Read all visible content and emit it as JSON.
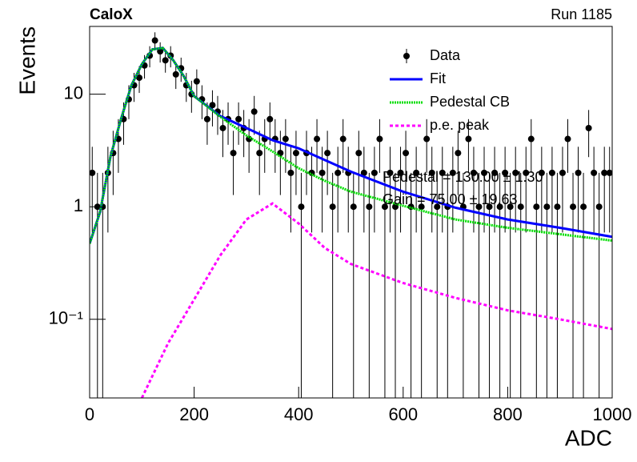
{
  "chart_data": {
    "type": "histogram-fit",
    "title": "CaloX",
    "subtitle": "Run 1185",
    "x_label": "ADC",
    "y_label": "Events",
    "log_y": true,
    "legend": "top-right",
    "xlim": [
      0,
      1000
    ],
    "xticks": [
      0,
      200,
      400,
      600,
      800,
      1000
    ],
    "ylim": [
      0.02,
      40
    ],
    "yticks": [
      {
        "value": 0.1,
        "label": "10⁻¹"
      },
      1,
      10
    ],
    "annotations": [
      "Pedestal = 130.00 ± 1.30",
      "Gain = 75.00 ± 19.63"
    ],
    "series": [
      {
        "name": "Data",
        "style": "points",
        "color": "#000000",
        "x": [
          5,
          15,
          25,
          35,
          45,
          55,
          65,
          75,
          85,
          95,
          105,
          115,
          125,
          135,
          145,
          155,
          165,
          175,
          185,
          195,
          205,
          215,
          225,
          235,
          245,
          255,
          265,
          275,
          285,
          295,
          305,
          315,
          325,
          335,
          345,
          355,
          365,
          375,
          385,
          395,
          405,
          415,
          425,
          435,
          445,
          455,
          465,
          475,
          485,
          495,
          505,
          515,
          525,
          535,
          545,
          555,
          565,
          575,
          585,
          595,
          605,
          615,
          625,
          635,
          645,
          655,
          665,
          675,
          685,
          695,
          705,
          715,
          725,
          735,
          745,
          755,
          765,
          775,
          785,
          795,
          805,
          815,
          825,
          835,
          845,
          855,
          865,
          875,
          885,
          895,
          905,
          915,
          925,
          935,
          945,
          955,
          965,
          975,
          985,
          995
        ],
        "values": [
          2,
          1,
          1,
          2,
          3,
          4,
          6,
          9,
          12,
          14,
          18,
          22,
          30,
          24,
          20,
          22,
          15,
          17,
          12,
          10,
          13,
          9,
          6,
          8,
          7,
          5,
          6,
          3,
          6,
          5,
          4,
          7,
          3,
          4,
          6,
          4,
          3,
          4,
          2,
          3,
          1,
          3,
          2,
          4,
          2,
          3,
          1,
          2,
          4,
          2,
          1,
          3,
          2,
          1,
          2,
          4,
          1,
          2,
          1,
          2,
          3,
          1,
          2,
          1,
          4,
          2,
          1,
          2,
          1,
          2,
          3,
          1,
          4,
          2,
          1,
          2,
          1,
          2,
          1,
          2,
          1,
          2,
          1,
          2,
          4,
          1,
          2,
          1,
          2,
          1,
          2,
          4,
          1,
          2,
          1,
          5,
          2,
          1,
          2,
          2
        ],
        "errors": [
          1.41,
          1,
          1,
          1.41,
          1.73,
          2,
          2.45,
          3,
          3.46,
          3.74,
          4.24,
          4.69,
          5.48,
          4.9,
          4.47,
          4.69,
          3.87,
          4.12,
          3.46,
          3.16,
          3.61,
          3,
          2.45,
          2.83,
          2.65,
          2.24,
          2.45,
          1.73,
          2.45,
          2.24,
          2,
          2.65,
          1.73,
          2,
          2.45,
          2,
          1.73,
          2,
          1.41,
          1.73,
          1,
          1.73,
          1.41,
          2,
          1.41,
          1.73,
          1,
          1.41,
          2,
          1.41,
          1,
          1.73,
          1.41,
          1,
          1.41,
          2,
          1,
          1.41,
          1,
          1.41,
          1.73,
          1,
          1.41,
          1,
          2,
          1.41,
          1,
          1.41,
          1,
          1.41,
          1.73,
          1,
          2,
          1.41,
          1,
          1.41,
          1,
          1.41,
          1,
          1.41,
          1,
          1.41,
          1,
          1.41,
          2,
          1,
          1.41,
          1,
          1.41,
          1,
          1.41,
          2,
          1,
          1.41,
          1,
          2.24,
          1.41,
          1,
          1.41,
          1.41
        ]
      },
      {
        "name": "Fit",
        "style": "solid",
        "color": "#0000ff",
        "x": [
          0,
          20,
          40,
          60,
          80,
          100,
          120,
          140,
          160,
          180,
          200,
          250,
          300,
          350,
          400,
          450,
          500,
          600,
          700,
          800,
          900,
          1000
        ],
        "values": [
          0.47,
          0.9,
          2.8,
          6,
          12,
          18.5,
          25,
          25.8,
          20,
          14.5,
          9.6,
          6.4,
          5,
          3.9,
          3.3,
          2.6,
          2.05,
          1.36,
          0.98,
          0.77,
          0.65,
          0.54
        ]
      },
      {
        "name": "Pedestal CB",
        "style": "dotted",
        "color": "#00dd00",
        "x": [
          0,
          20,
          40,
          60,
          80,
          100,
          120,
          140,
          160,
          180,
          200,
          250,
          300,
          350,
          400,
          450,
          500,
          600,
          700,
          800,
          900,
          1000
        ],
        "values": [
          0.47,
          0.9,
          2.8,
          6,
          12,
          18.5,
          25,
          25.8,
          20,
          14.5,
          9.6,
          6.3,
          4.3,
          3.1,
          2.2,
          1.7,
          1.36,
          1.02,
          0.77,
          0.65,
          0.57,
          0.5
        ]
      },
      {
        "name": "p.e. peak",
        "style": "dashed",
        "color": "#ff00ff",
        "x": [
          100,
          150,
          200,
          250,
          300,
          350,
          400,
          450,
          500,
          600,
          700,
          800,
          900,
          1000
        ],
        "values": [
          0.02,
          0.061,
          0.15,
          0.37,
          0.77,
          1.07,
          0.71,
          0.43,
          0.31,
          0.21,
          0.155,
          0.12,
          0.1,
          0.082
        ]
      }
    ]
  }
}
